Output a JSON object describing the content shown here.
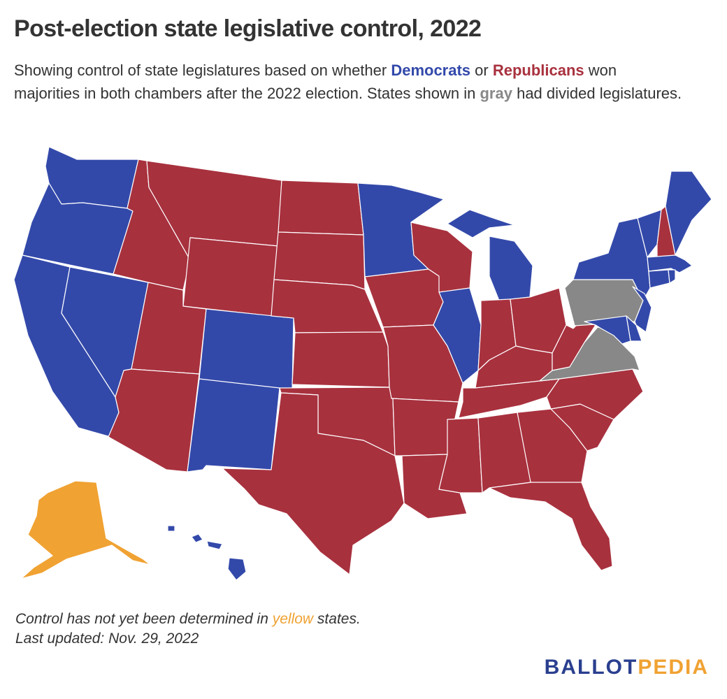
{
  "title": "Post-election state legislative control, 2022",
  "subtitle": {
    "p1": "Showing control of state legislatures based on whether ",
    "dem": "Democrats",
    "p2": " or ",
    "rep": "Republicans",
    "p3": " won majorities in both chambers after the 2022 election. States shown in ",
    "gray": "gray",
    "p4": " had divided legislatures."
  },
  "colors": {
    "democrat": "#3349AA",
    "republican": "#A8313E",
    "divided": "#888888",
    "undetermined": "#F0A232"
  },
  "states": {
    "democrat": [
      "Washington",
      "Oregon",
      "California",
      "Nevada",
      "Colorado",
      "New Mexico",
      "Minnesota",
      "Illinois",
      "Michigan",
      "New York",
      "Vermont",
      "Maine",
      "Massachusetts",
      "Connecticut",
      "Rhode Island",
      "New Jersey",
      "Delaware",
      "Maryland",
      "Hawaii"
    ],
    "republican": [
      "Idaho",
      "Montana",
      "Wyoming",
      "Utah",
      "Arizona",
      "North Dakota",
      "South Dakota",
      "Nebraska",
      "Kansas",
      "Oklahoma",
      "Texas",
      "Iowa",
      "Missouri",
      "Arkansas",
      "Louisiana",
      "Wisconsin",
      "Indiana",
      "Ohio",
      "Kentucky",
      "Tennessee",
      "Mississippi",
      "Alabama",
      "Georgia",
      "Florida",
      "South Carolina",
      "North Carolina",
      "West Virginia",
      "New Hampshire"
    ],
    "divided": [
      "Pennsylvania",
      "Virginia"
    ],
    "undetermined": [
      "Alaska"
    ]
  },
  "footer": {
    "note_p1": "Control has not yet been determined in ",
    "note_yellow": "yellow",
    "note_p2": " states.",
    "updated": "Last updated: Nov. 29, 2022"
  },
  "logo": {
    "part1": "BALLOT",
    "part2": "PEDIA",
    "color1": "#2A3F8F",
    "color2": "#F0A232"
  }
}
